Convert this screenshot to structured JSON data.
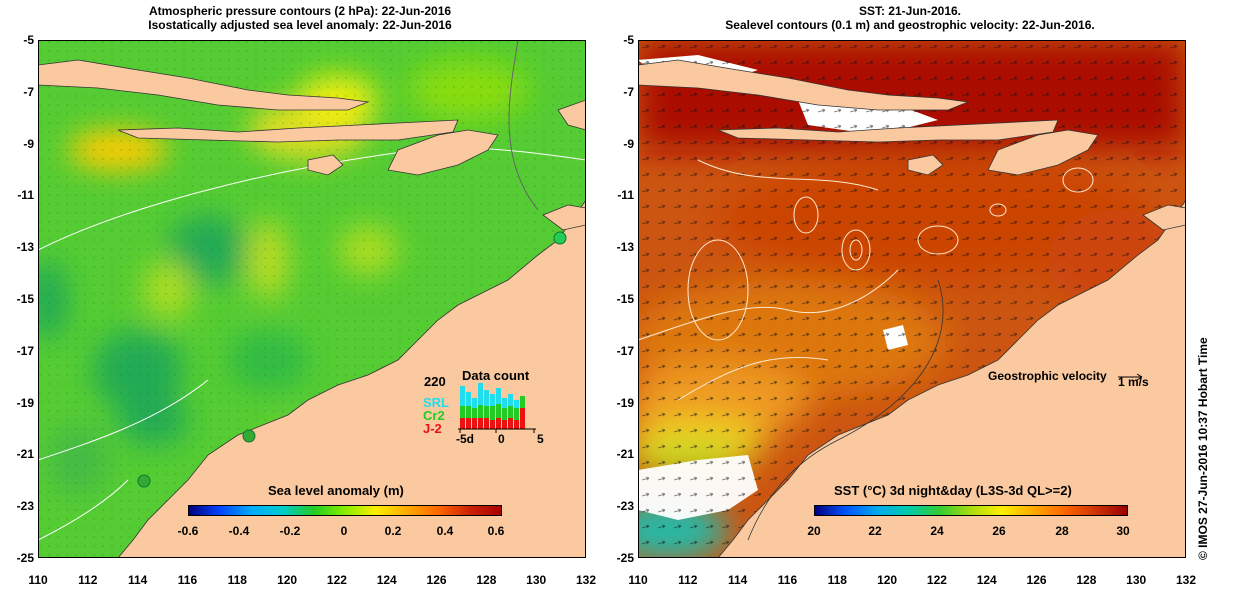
{
  "left": {
    "title_line1": "Atmospheric pressure contours (2 hPa): 22-Jun-2016",
    "title_line2": "Isostatically adjusted sea level anomaly: 22-Jun-2016",
    "colorbar_title": "Sea level anomaly (m)",
    "colorbar_ticks": [
      "-0.6",
      "-0.4",
      "-0.2",
      "0",
      "0.2",
      "0.4",
      "0.6"
    ],
    "inset": {
      "max_label": "220",
      "title": "Data count",
      "series": [
        "SRL",
        "Cr2",
        "J-2"
      ],
      "series_colors": [
        "#22ddee",
        "#22cc22",
        "#ee1111"
      ],
      "x_ticks": [
        "-5d",
        "0",
        "5"
      ]
    }
  },
  "right": {
    "title_line1": "SST: 21-Jun-2016.",
    "title_line2": "Sealevel contours (0.1 m) and geostrophic velocity: 22-Jun-2016.",
    "colorbar_title": "SST (°C) 3d night&day (L3S-3d QL>=2)",
    "colorbar_ticks": [
      "20",
      "22",
      "24",
      "26",
      "28",
      "30"
    ],
    "geo_label": "Geostrophic velocity",
    "geo_scale": "1 m/s"
  },
  "y_ticks": [
    "-5",
    "-7",
    "-9",
    "-11",
    "-13",
    "-15",
    "-17",
    "-19",
    "-21",
    "-23",
    "-25"
  ],
  "x_ticks": [
    "110",
    "112",
    "114",
    "116",
    "118",
    "120",
    "122",
    "124",
    "126",
    "128",
    "130",
    "132"
  ],
  "credit": "© IMOS 27-Jun-2016 10:37 Hobart Time",
  "colors": {
    "land": "#fac9a0",
    "sla_colormap": [
      "#000080",
      "#0066ff",
      "#00cccc",
      "#22cc22",
      "#88ee00",
      "#ffee00",
      "#ff9900",
      "#cc2200"
    ],
    "sst_colormap": [
      "#000080",
      "#0088ff",
      "#00cccc",
      "#33cc33",
      "#ffee00",
      "#ff8800",
      "#cc3300",
      "#990000"
    ]
  }
}
